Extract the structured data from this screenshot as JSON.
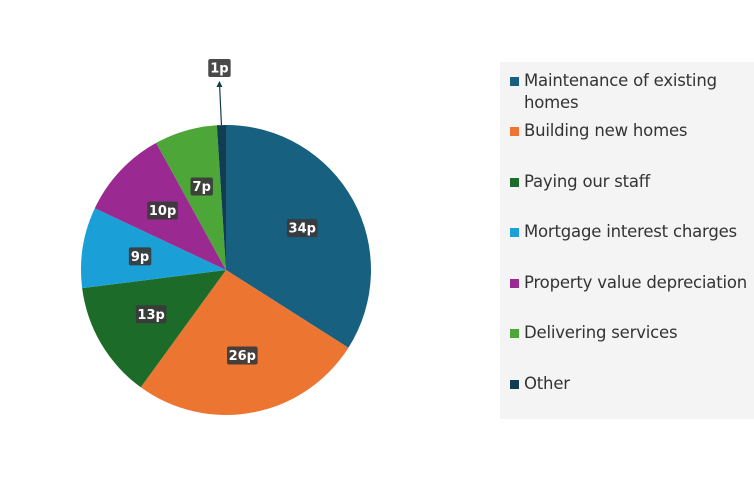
{
  "chart_data": {
    "type": "pie",
    "title": "",
    "unit": "p",
    "slices": [
      {
        "label": "Maintenance of existing homes",
        "value": 34,
        "display": "34p",
        "color": "#18607f"
      },
      {
        "label": "Building new homes",
        "value": 26,
        "display": "26p",
        "color": "#ec7532"
      },
      {
        "label": "Paying our staff",
        "value": 13,
        "display": "13p",
        "color": "#1d6b28"
      },
      {
        "label": "Mortgage interest charges",
        "value": 9,
        "display": "9p",
        "color": "#1aa0d6"
      },
      {
        "label": "Property value depreciation",
        "value": 10,
        "display": "10p",
        "color": "#9a2a92"
      },
      {
        "label": "Delivering services",
        "value": 7,
        "display": "7p",
        "color": "#4da638"
      },
      {
        "label": "Other",
        "value": 1,
        "display": "1p",
        "color": "#123c52"
      }
    ],
    "legend": {
      "placement": "right"
    }
  }
}
